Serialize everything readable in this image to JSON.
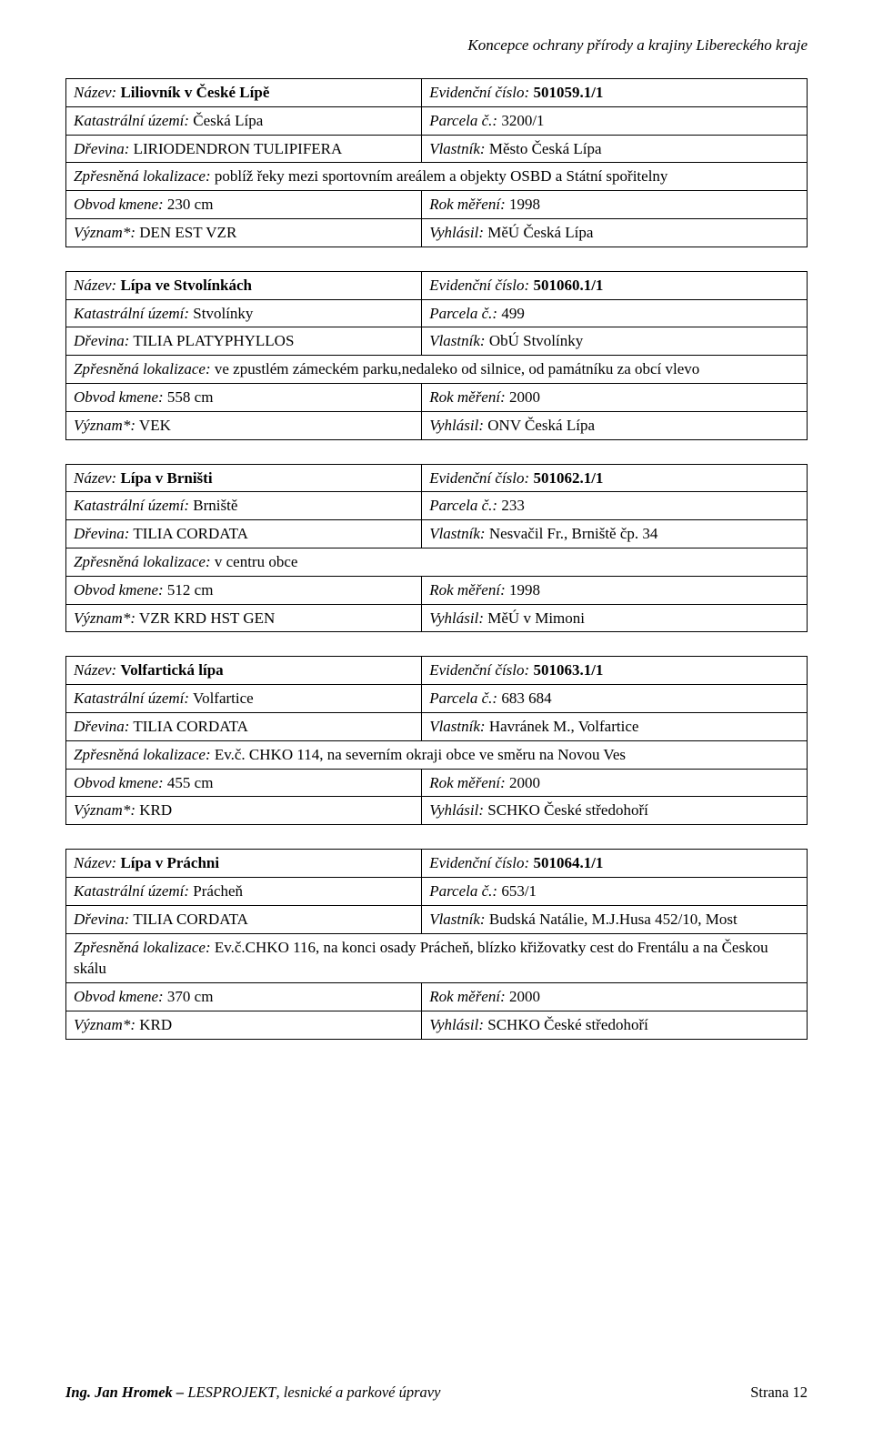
{
  "header_text": "Koncepce ochrany přírody a krajiny Libereckého kraje",
  "labels": {
    "nazev": "Název:",
    "ev_cislo": "Evidenční číslo:",
    "kat_uzemi": "Katastrální území:",
    "parcela": "Parcela č.:",
    "drevina": "Dřevina:",
    "vlastnik": "Vlastník:",
    "lokalizace": "Zpřesněná lokalizace:",
    "obvod": "Obvod kmene:",
    "rok": "Rok měření:",
    "vyznam": "Význam*:",
    "vyhlasil": "Vyhlásil:"
  },
  "records": [
    {
      "nazev": "Liliovník v České Lípě",
      "ev_cislo": "501059.1/1",
      "kat_uzemi": "Česká Lípa",
      "parcela": "3200/1",
      "drevina": "LIRIODENDRON TULIPIFERA",
      "vlastnik": "Město Česká Lípa",
      "lokalizace": "poblíž řeky mezi sportovním areálem a objekty OSBD a Státní spořitelny",
      "obvod": "230 cm",
      "rok": "1998",
      "vyznam": "DEN EST VZR",
      "vyhlasil": "MěÚ Česká Lípa"
    },
    {
      "nazev": "Lípa ve Stvolínkách",
      "ev_cislo": "501060.1/1",
      "kat_uzemi": "Stvolínky",
      "parcela": "499",
      "drevina": "TILIA PLATYPHYLLOS",
      "vlastnik": "ObÚ Stvolínky",
      "lokalizace": "ve zpustlém zámeckém parku,nedaleko od silnice, od památníku za obcí vlevo",
      "obvod": "558 cm",
      "rok": "2000",
      "vyznam": "VEK",
      "vyhlasil": "ONV Česká Lípa"
    },
    {
      "nazev": "Lípa v Brništi",
      "ev_cislo": "501062.1/1",
      "kat_uzemi": "Brniště",
      "parcela": "233",
      "drevina": "TILIA CORDATA",
      "vlastnik": "Nesvačil Fr., Brniště čp. 34",
      "lokalizace": "v centru obce",
      "obvod": "512 cm",
      "rok": "1998",
      "vyznam": "VZR KRD HST GEN",
      "vyhlasil": "MěÚ v Mimoni"
    },
    {
      "nazev": "Volfartická lípa",
      "ev_cislo": "501063.1/1",
      "kat_uzemi": "Volfartice",
      "parcela": "683 684",
      "drevina": "TILIA CORDATA",
      "vlastnik": "Havránek M., Volfartice",
      "lokalizace": "Ev.č. CHKO 114, na severním okraji obce ve směru na Novou Ves",
      "obvod": "455 cm",
      "rok": "2000",
      "vyznam": "KRD",
      "vyhlasil": "SCHKO České středohoří"
    },
    {
      "nazev": "Lípa v Práchni",
      "ev_cislo": "501064.1/1",
      "kat_uzemi": "Prácheň",
      "parcela": "653/1",
      "drevina": "TILIA CORDATA",
      "vlastnik": "Budská Natálie, M.J.Husa 452/10, Most",
      "lokalizace": "Ev.č.CHKO 116, na konci osady Prácheň, blízko křižovatky cest do Frentálu a na Českou skálu",
      "obvod": "370 cm",
      "rok": "2000",
      "vyznam": "KRD",
      "vyhlasil": "SCHKO České středohoří"
    }
  ],
  "footer": {
    "author_part1": "Ing. Jan Hromek – ",
    "author_part2": "LESPROJEKT",
    "author_part3": ", lesnické a parkové úpravy",
    "page_label": "Strana",
    "page_num": "12"
  }
}
